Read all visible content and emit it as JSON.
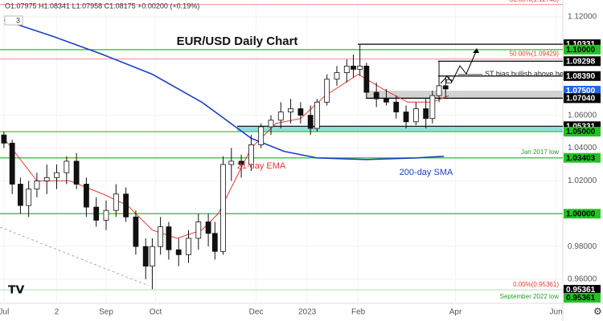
{
  "chart_data": {
    "type": "candlestick",
    "title": "EUR/USD Daily Chart",
    "ohlc_header": "O1.07975 H1.08341 L1.07958 C1.08175 +0.00200 (+0.19%)",
    "indicator_count": "3",
    "xlim": [
      -2.4,
      339.1
    ],
    "xticks": [
      {
        "value": 0,
        "label": "Jul"
      },
      {
        "value": 32,
        "label": "2"
      },
      {
        "value": 62,
        "label": "Sep"
      },
      {
        "value": 92,
        "label": "Oct"
      },
      {
        "value": 153,
        "label": "Dec"
      },
      {
        "value": 184,
        "label": "2023"
      },
      {
        "value": 215,
        "label": "Feb"
      },
      {
        "value": 274,
        "label": "Apr"
      },
      {
        "value": 335,
        "label": "Jun"
      }
    ],
    "ylim": [
      0.94534,
      1.13027
    ],
    "yticks": [
      {
        "value": 1.12,
        "label": "1.12000"
      },
      {
        "value": 1.06,
        "label": "1.06000"
      },
      {
        "value": 1.04,
        "label": "1.04000"
      },
      {
        "value": 1.02,
        "label": "1.02000"
      },
      {
        "value": 0.98,
        "label": "0.98000"
      },
      {
        "value": 0.96,
        "label": "0.96000"
      }
    ],
    "x": [
      0,
      5,
      10,
      15,
      20,
      26,
      32,
      38,
      44,
      50,
      56,
      62,
      68,
      74,
      80,
      86,
      90,
      95,
      100,
      106,
      112,
      118,
      124,
      128,
      133,
      138,
      144,
      150,
      156,
      162,
      168,
      174,
      180,
      186,
      190,
      196,
      202,
      208,
      212,
      216,
      220,
      226,
      232,
      238,
      244,
      250,
      256,
      260,
      264,
      268,
      270
    ],
    "open": [
      1.048,
      1.043,
      1.018,
      1.005,
      1.015,
      1.02,
      1.022,
      1.025,
      1.032,
      1.018,
      1.004,
      0.996,
      1.002,
      1.012,
      0.998,
      0.98,
      0.968,
      0.98,
      0.992,
      0.978,
      0.975,
      0.985,
      0.995,
      0.988,
      0.977,
      1.03,
      1.032,
      1.03,
      1.042,
      1.053,
      1.057,
      1.062,
      1.064,
      1.06,
      1.052,
      1.068,
      1.082,
      1.086,
      1.09,
      1.088,
      1.09,
      1.074,
      1.07,
      1.068,
      1.062,
      1.056,
      1.064,
      1.058,
      1.072,
      1.078,
      1.07975
    ],
    "high": [
      1.05,
      1.045,
      1.022,
      1.02,
      1.025,
      1.03,
      1.03,
      1.035,
      1.037,
      1.022,
      1.01,
      1.008,
      1.018,
      1.016,
      1.002,
      0.985,
      0.985,
      0.998,
      0.995,
      0.985,
      0.99,
      1.0,
      1.0,
      0.995,
      1.035,
      1.04,
      1.036,
      1.048,
      1.055,
      1.06,
      1.068,
      1.07,
      1.068,
      1.066,
      1.07,
      1.085,
      1.09,
      1.094,
      1.097,
      1.103,
      1.092,
      1.08,
      1.076,
      1.072,
      1.066,
      1.068,
      1.07,
      1.075,
      1.093,
      1.083,
      1.08341
    ],
    "low": [
      1.04,
      1.012,
      1.0,
      0.998,
      1.01,
      1.012,
      1.015,
      1.018,
      1.015,
      0.998,
      0.992,
      0.99,
      0.998,
      0.995,
      0.975,
      0.96,
      0.954,
      0.975,
      0.972,
      0.968,
      0.97,
      0.978,
      0.98,
      0.972,
      0.975,
      1.02,
      1.022,
      1.026,
      1.04,
      1.048,
      1.052,
      1.055,
      1.055,
      1.048,
      1.05,
      1.066,
      1.078,
      1.08,
      1.083,
      1.084,
      1.07,
      1.065,
      1.066,
      1.058,
      1.052,
      1.054,
      1.052,
      1.055,
      1.068,
      1.071,
      1.07958
    ],
    "close": [
      1.043,
      1.018,
      1.005,
      1.015,
      1.02,
      1.022,
      1.025,
      1.032,
      1.018,
      1.004,
      0.996,
      1.002,
      1.012,
      0.998,
      0.98,
      0.968,
      0.98,
      0.992,
      0.978,
      0.975,
      0.985,
      0.995,
      0.988,
      0.977,
      1.03,
      1.032,
      1.03,
      1.042,
      1.053,
      1.057,
      1.062,
      1.064,
      1.06,
      1.052,
      1.068,
      1.082,
      1.086,
      1.09,
      1.088,
      1.09,
      1.074,
      1.07,
      1.068,
      1.062,
      1.056,
      1.064,
      1.058,
      1.072,
      1.078,
      1.076,
      1.08175
    ],
    "series": [
      {
        "name": "21-day EMA",
        "color": "#e53935",
        "x": [
          0,
          20,
          40,
          60,
          75,
          90,
          105,
          120,
          130,
          140,
          150,
          165,
          180,
          195,
          215,
          230,
          245,
          260,
          270
        ],
        "values": [
          1.046,
          1.02,
          1.02,
          1.012,
          1.005,
          0.99,
          0.985,
          0.99,
          1.0,
          1.02,
          1.04,
          1.055,
          1.058,
          1.072,
          1.085,
          1.076,
          1.068,
          1.068,
          1.072
        ]
      },
      {
        "name": "200-day SMA",
        "color": "#1e40c8",
        "x": [
          0,
          30,
          60,
          90,
          120,
          150,
          170,
          190,
          220,
          250,
          267
        ],
        "values": [
          1.118,
          1.108,
          1.097,
          1.085,
          1.068,
          1.046,
          1.038,
          1.034,
          1.033,
          1.034,
          1.035
        ]
      }
    ],
    "levels": [
      {
        "value": 1.10331,
        "label": "1.10331",
        "color": "#000000"
      },
      {
        "value": 1.1,
        "label": "1.10000",
        "color": "#22c322"
      },
      {
        "value": 1.09298,
        "label": "1.09298",
        "color": "#000000"
      },
      {
        "value": 1.0839,
        "label": "1.08390",
        "color": "#000000"
      },
      {
        "value": 1.075,
        "label": "1.07500",
        "color": "#2563eb"
      },
      {
        "value": 1.0704,
        "label": "1.07040",
        "color": "#000000"
      },
      {
        "value": 1.05331,
        "label": "1.05331",
        "color": "#000000"
      },
      {
        "value": 1.05,
        "label": "1.05000",
        "color": "#22c322"
      },
      {
        "value": 1.03403,
        "label": "1.03403",
        "color": "#22c322"
      },
      {
        "value": 1.0,
        "label": "1.00000",
        "color": "#22c322"
      },
      {
        "value": 0.95361,
        "label": "0.95361",
        "color": "#000000"
      }
    ],
    "fib_levels": [
      {
        "value": 1.12748,
        "label": "61.80%(1.12748)"
      },
      {
        "value": 1.09429,
        "label": "50.00%(1.09429)"
      },
      {
        "value": 0.95361,
        "label": "0.00%(0.95361)"
      }
    ],
    "annotations": [
      "ST bias bullish above here",
      "Jan 2017 low",
      "September 2022 low"
    ],
    "bottom_label": {
      "value": 0.95361,
      "label": "0.95361"
    }
  }
}
